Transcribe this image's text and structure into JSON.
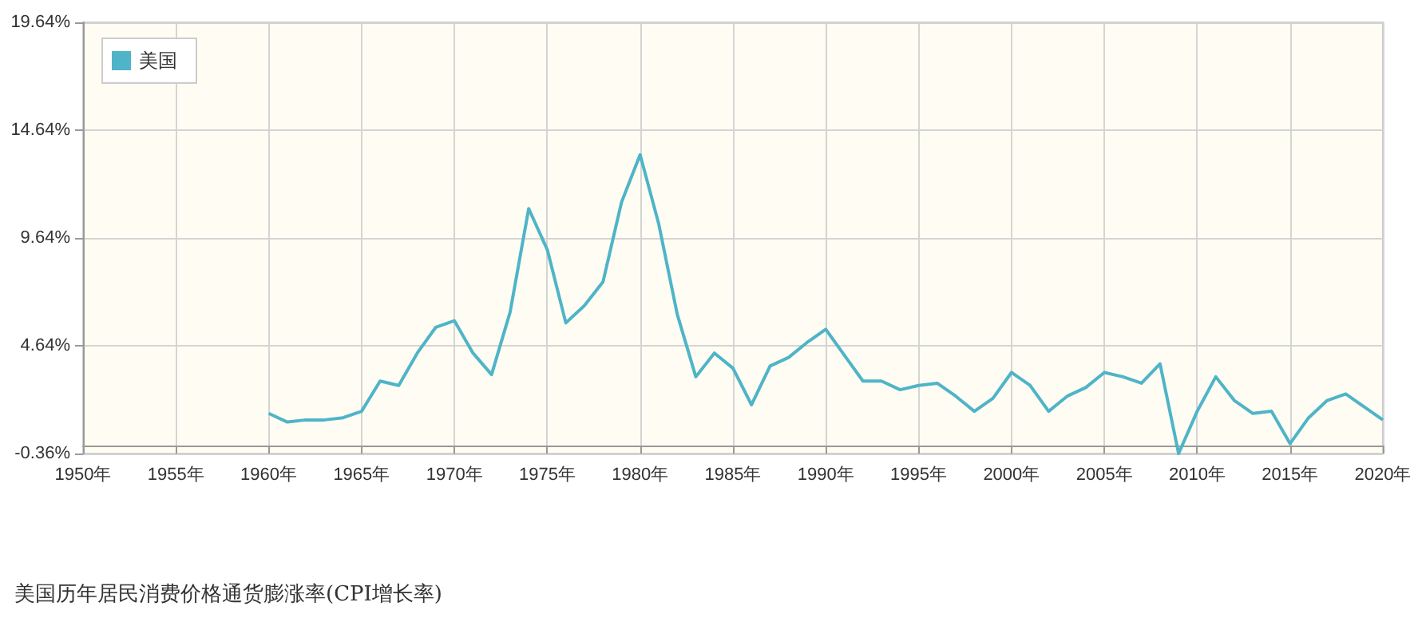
{
  "chart_data": {
    "type": "line",
    "title": "美国历年居民消费价格通货膨涨率(CPI增长率)",
    "x": [
      1960,
      1961,
      1962,
      1963,
      1964,
      1965,
      1966,
      1967,
      1968,
      1969,
      1970,
      1971,
      1972,
      1973,
      1974,
      1975,
      1976,
      1977,
      1978,
      1979,
      1980,
      1981,
      1982,
      1983,
      1984,
      1985,
      1986,
      1987,
      1988,
      1989,
      1990,
      1991,
      1992,
      1993,
      1994,
      1995,
      1996,
      1997,
      1998,
      1999,
      2000,
      2001,
      2002,
      2003,
      2004,
      2005,
      2006,
      2007,
      2008,
      2009,
      2010,
      2011,
      2012,
      2013,
      2014,
      2015,
      2016,
      2017,
      2018,
      2019,
      2020
    ],
    "series": [
      {
        "name": "美国",
        "color": "#4fb4c8",
        "values": [
          1.5,
          1.1,
          1.2,
          1.2,
          1.3,
          1.6,
          3.0,
          2.8,
          4.3,
          5.5,
          5.8,
          4.3,
          3.3,
          6.2,
          11.0,
          9.1,
          5.7,
          6.5,
          7.6,
          11.3,
          13.5,
          10.3,
          6.1,
          3.2,
          4.3,
          3.6,
          1.9,
          3.7,
          4.1,
          4.8,
          5.4,
          4.2,
          3.0,
          3.0,
          2.6,
          2.8,
          2.9,
          2.3,
          1.6,
          2.2,
          3.4,
          2.8,
          1.6,
          2.3,
          2.7,
          3.4,
          3.2,
          2.9,
          3.8,
          -0.36,
          1.6,
          3.2,
          2.1,
          1.5,
          1.6,
          0.1,
          1.3,
          2.1,
          2.4,
          1.8,
          1.2
        ]
      }
    ],
    "xlim": [
      1950,
      2020
    ],
    "xticks": [
      {
        "value": 1950,
        "label": "1950年"
      },
      {
        "value": 1955,
        "label": "1955年"
      },
      {
        "value": 1960,
        "label": "1960年"
      },
      {
        "value": 1965,
        "label": "1965年"
      },
      {
        "value": 1970,
        "label": "1970年"
      },
      {
        "value": 1975,
        "label": "1975年"
      },
      {
        "value": 1980,
        "label": "1980年"
      },
      {
        "value": 1985,
        "label": "1985年"
      },
      {
        "value": 1990,
        "label": "1990年"
      },
      {
        "value": 1995,
        "label": "1995年"
      },
      {
        "value": 2000,
        "label": "2000年"
      },
      {
        "value": 2005,
        "label": "2005年"
      },
      {
        "value": 2010,
        "label": "2010年"
      },
      {
        "value": 2015,
        "label": "2015年"
      },
      {
        "value": 2020,
        "label": "2020年"
      }
    ],
    "ylim": [
      -0.36,
      19.64
    ],
    "yticks": [
      {
        "value": -0.36,
        "label": "-0.36%"
      },
      {
        "value": 4.64,
        "label": "4.64%"
      },
      {
        "value": 9.64,
        "label": "9.64%"
      },
      {
        "value": 14.64,
        "label": "14.64%"
      },
      {
        "value": 19.64,
        "label": "19.64%"
      }
    ],
    "grid": true,
    "legend": "top left",
    "marker": "none",
    "line_style": "solid"
  }
}
